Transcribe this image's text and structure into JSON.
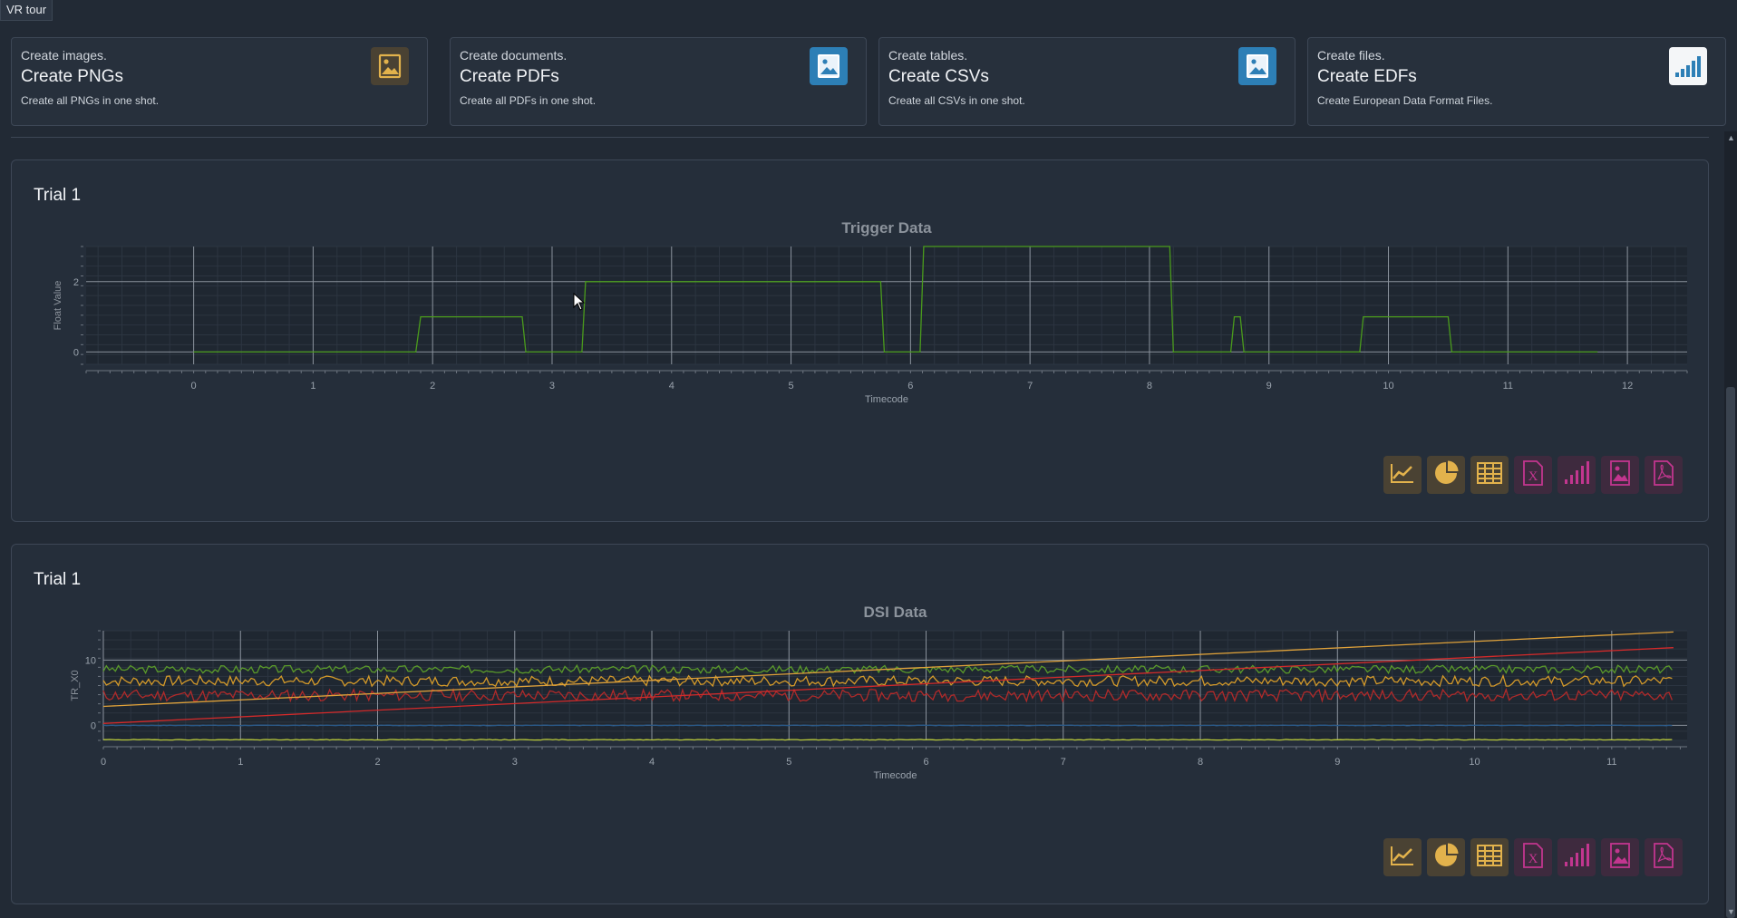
{
  "window": {
    "tab_label": "VR tour"
  },
  "cards": [
    {
      "sub": "Create images.",
      "title": "Create PNGs",
      "desc": "Create all PNGs in one shot.",
      "icon": "image-icon",
      "accent": "#e2b24c"
    },
    {
      "sub": "Create documents.",
      "title": "Create PDFs",
      "desc": "Create all PDFs in one shot.",
      "icon": "image-icon",
      "accent": "#2d7fb6"
    },
    {
      "sub": "Create tables.",
      "title": "Create CSVs",
      "desc": "Create all CSVs in one shot.",
      "icon": "image-icon",
      "accent": "#2d7fb6"
    },
    {
      "sub": "Create files.",
      "title": "Create EDFs",
      "desc": "Create European Data Format Files.",
      "icon": "bar-signal-icon",
      "accent": "#2d7fb6"
    }
  ],
  "panels": [
    {
      "title": "Trial 1",
      "chart_data": {
        "type": "line",
        "title": "Trigger Data",
        "xlabel": "Timecode",
        "ylabel": "Float Value",
        "xlim": [
          -0.9,
          12.5
        ],
        "ylim": [
          -0.35,
          3.0
        ],
        "x_ticks": [
          "0",
          "1",
          "2",
          "3",
          "4",
          "5",
          "6",
          "7",
          "8",
          "9",
          "10",
          "11",
          "12"
        ],
        "y_ticks": [
          "0",
          "2"
        ],
        "grid": true,
        "series": [
          {
            "color": "#4a9b1c",
            "points": [
              [
                0,
                0
              ],
              [
                1.86,
                0
              ],
              [
                1.9,
                1
              ],
              [
                2.75,
                1
              ],
              [
                2.78,
                0
              ],
              [
                3.25,
                0
              ],
              [
                3.28,
                2
              ],
              [
                5.75,
                2
              ],
              [
                5.78,
                0
              ],
              [
                6.08,
                0
              ],
              [
                6.11,
                3
              ],
              [
                8.17,
                3
              ],
              [
                8.2,
                0
              ],
              [
                8.68,
                0
              ],
              [
                8.71,
                1
              ],
              [
                8.76,
                1
              ],
              [
                8.79,
                0
              ],
              [
                9.76,
                0
              ],
              [
                9.79,
                1
              ],
              [
                10.5,
                1
              ],
              [
                10.53,
                0
              ],
              [
                11.75,
                0
              ]
            ]
          }
        ]
      },
      "toolbar": [
        "line-chart-icon",
        "pie-chart-icon",
        "table-icon",
        "excel-icon",
        "bar-signal-icon",
        "image-icon",
        "pdf-icon"
      ]
    },
    {
      "title": "Trial 1",
      "chart_data": {
        "type": "line",
        "title": "DSI Data",
        "xlabel": "Timecode",
        "ylabel": "TR_X0",
        "xlim": [
          0,
          11.55
        ],
        "ylim": [
          -2.3,
          14.5
        ],
        "x_ticks": [
          "0",
          "1",
          "2",
          "3",
          "4",
          "5",
          "6",
          "7",
          "8",
          "9",
          "10",
          "11"
        ],
        "y_ticks": [
          "0",
          "10"
        ],
        "grid": true,
        "series": [
          {
            "color": "#5a9a2a",
            "noise": {
              "base": 8.6,
              "amp": 0.6,
              "seed": 3
            }
          },
          {
            "color": "#d49a2a",
            "noise": {
              "base": 6.8,
              "amp": 0.8,
              "seed": 7
            }
          },
          {
            "color": "#b02a2a",
            "noise": {
              "base": 4.6,
              "amp": 0.9,
              "seed": 11
            }
          },
          {
            "color": "#2a5a8a",
            "noise": {
              "base": 0.0,
              "amp": 0.05,
              "seed": 17
            }
          },
          {
            "color": "#b8c83a",
            "noise": {
              "base": -2.2,
              "amp": 0.05,
              "seed": 19
            }
          },
          {
            "color": "#e0a23a",
            "points": [
              [
                0,
                2.9
              ],
              [
                11.45,
                14.3
              ]
            ]
          },
          {
            "color": "#d42a2a",
            "points": [
              [
                0,
                0.3
              ],
              [
                11.45,
                11.9
              ]
            ]
          }
        ]
      },
      "toolbar": [
        "line-chart-icon",
        "pie-chart-icon",
        "table-icon",
        "excel-icon",
        "bar-signal-icon",
        "image-icon",
        "pdf-icon"
      ]
    }
  ]
}
